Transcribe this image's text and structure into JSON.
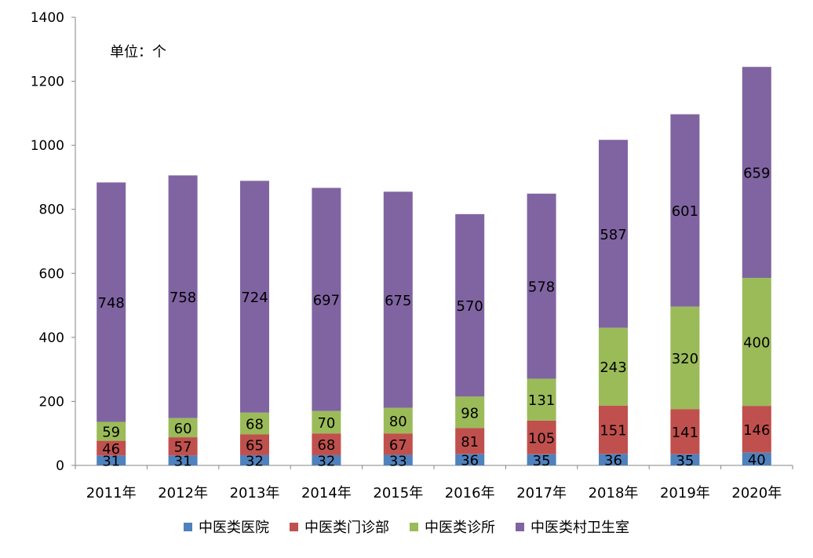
{
  "chart_data": {
    "type": "stacked-bar",
    "unit_label": "单位：个",
    "categories": [
      "2011年",
      "2012年",
      "2013年",
      "2014年",
      "2015年",
      "2016年",
      "2017年",
      "2018年",
      "2019年",
      "2020年"
    ],
    "ylim": [
      0,
      1400
    ],
    "yticks": [
      0,
      200,
      400,
      600,
      800,
      1000,
      1200,
      1400
    ],
    "series": [
      {
        "name": "中医类医院",
        "color": "#4F81BD",
        "values": [
          31,
          31,
          32,
          32,
          33,
          36,
          35,
          36,
          35,
          40
        ]
      },
      {
        "name": "中医类门诊部",
        "color": "#C0504D",
        "values": [
          46,
          57,
          65,
          68,
          67,
          81,
          105,
          151,
          141,
          146
        ]
      },
      {
        "name": "中医类诊所",
        "color": "#9BBB59",
        "values": [
          59,
          60,
          68,
          70,
          80,
          98,
          131,
          243,
          320,
          400
        ]
      },
      {
        "name": "中医类村卫生室",
        "color": "#8064A2",
        "values": [
          748,
          758,
          724,
          697,
          675,
          570,
          578,
          587,
          601,
          659
        ]
      }
    ]
  }
}
